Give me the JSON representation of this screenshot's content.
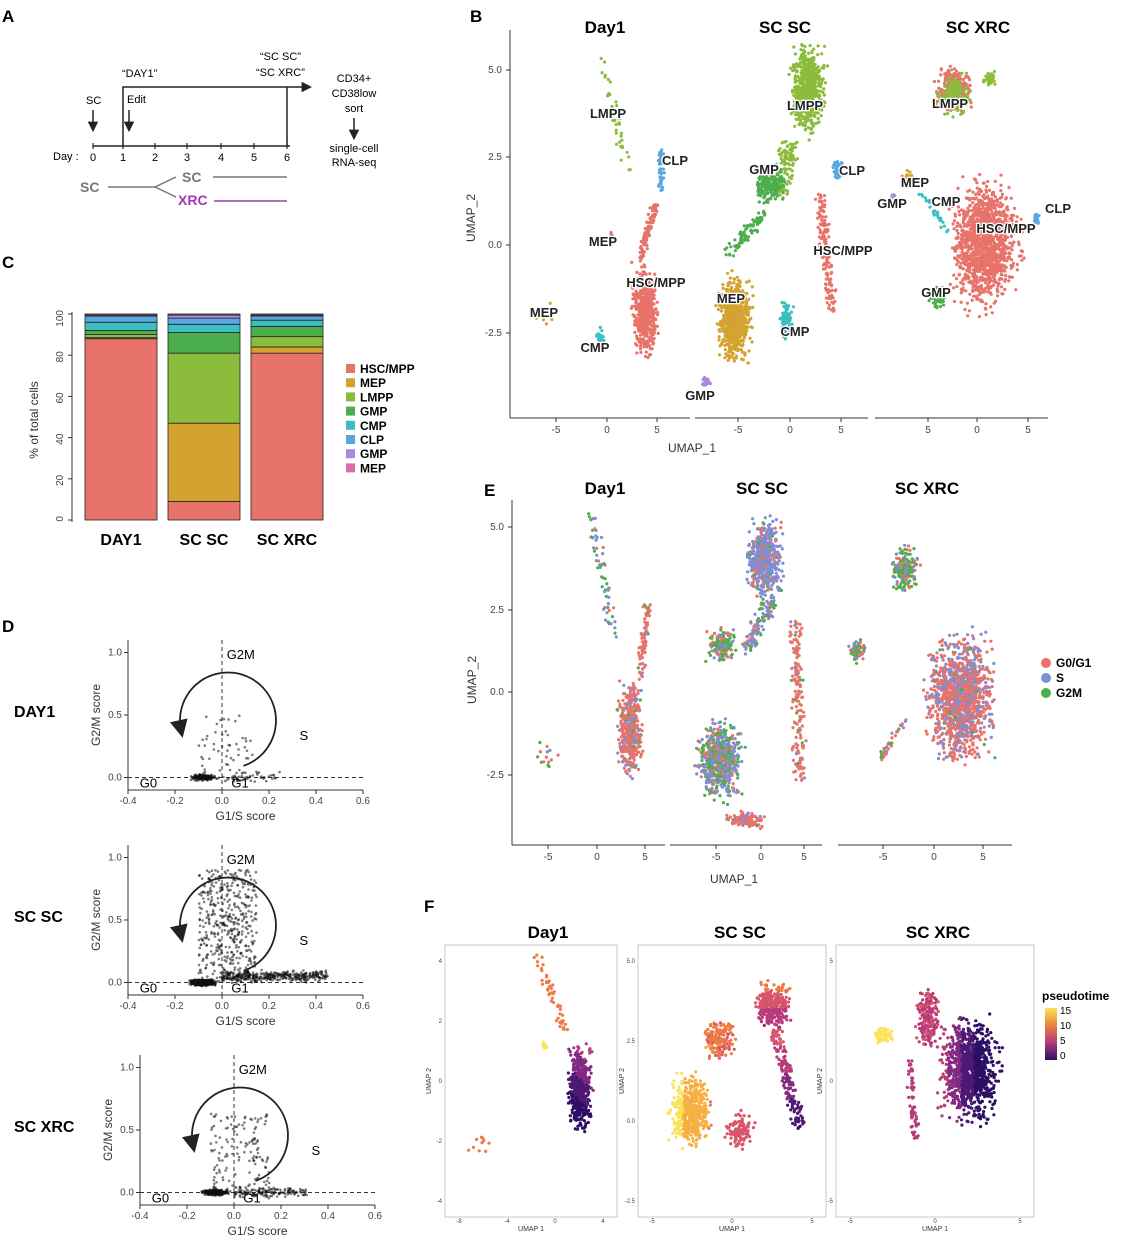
{
  "panels": {
    "A": {
      "label": "A",
      "sc_top": "SC",
      "edit": "Edit",
      "day1_quote": "“DAY1”",
      "scsc_quote": "“SC SC”",
      "scxrc_quote": "“SC XRC”",
      "sort_lines": [
        "CD34+",
        "CD38low",
        "sort"
      ],
      "seq_lines": [
        "single-cell",
        "RNA-seq"
      ],
      "day_label": "Day :",
      "days": [
        "0",
        "1",
        "2",
        "3",
        "4",
        "5",
        "6"
      ],
      "sc_root": "SC",
      "sc_branch": "SC",
      "xrc_branch": "XRC",
      "xrc_color": "#9b3db0"
    },
    "B": {
      "label": "B",
      "titles": [
        "Day1",
        "SC SC",
        "SC XRC"
      ],
      "xlabel": "UMAP_1",
      "ylabel": "UMAP_2",
      "yticks": [
        "5.0",
        "2.5",
        "0.0",
        "-2.5"
      ],
      "xticks": [
        [
          "-5",
          "0",
          "5"
        ],
        [
          "-5",
          "0",
          "5"
        ],
        [
          "5",
          "0",
          "5"
        ]
      ],
      "cluster_labels": [
        [
          "LMPP",
          "CLP",
          "MEP",
          "HSC/MPP",
          "MEP",
          "CMP"
        ],
        [
          "LMPP",
          "GMP",
          "CLP",
          "HSC/MPP",
          "MEP",
          "CMP",
          "GMP"
        ],
        [
          "LMPP",
          "MEP",
          "GMP",
          "CMP",
          "CLP",
          "HSC/MPP",
          "GMP"
        ]
      ]
    },
    "C": {
      "label": "C",
      "ylabel": "% of total cells",
      "yticks": [
        "0",
        "20",
        "40",
        "60",
        "80",
        "100"
      ]
    },
    "D": {
      "label": "D",
      "rows": [
        "DAY1",
        "SC SC",
        "SC XRC"
      ],
      "xlabel": "G1/S score",
      "ylabel": "G2/M score",
      "xticks": [
        "-0.4",
        "-0.2",
        "0.0",
        "0.2",
        "0.4",
        "0.6"
      ],
      "yticks": [
        "1.0",
        "0.5",
        "0.0"
      ],
      "phase_labels": [
        "G2M",
        "S",
        "G0",
        "G1"
      ]
    },
    "E": {
      "label": "E",
      "titles": [
        "Day1",
        "SC SC",
        "SC XRC"
      ],
      "xlabel": "UMAP_1",
      "ylabel": "UMAP_2",
      "yticks": [
        "5.0",
        "2.5",
        "0.0",
        "-2.5"
      ],
      "xticks": [
        [
          "-5",
          "0",
          "5"
        ],
        [
          "-5",
          "0",
          "5"
        ],
        [
          "-5",
          "0",
          "5"
        ]
      ],
      "legend": [
        {
          "name": "G0/G1",
          "color": "#e8736b"
        },
        {
          "name": "S",
          "color": "#7d8ed4"
        },
        {
          "name": "G2M",
          "color": "#4cae4c"
        }
      ]
    },
    "F": {
      "label": "F",
      "titles": [
        "Day1",
        "SC SC",
        "SC XRC"
      ],
      "xlabel": "UMAP 1",
      "ylabel": "UMAP 2",
      "legend_title": "pseudotime",
      "legend_ticks": [
        "15",
        "10",
        "5",
        "0"
      ],
      "yticks": [
        [
          "4",
          "2",
          "0",
          "-2",
          "-4"
        ],
        [
          "5.0",
          "2.5",
          "0.0",
          "-2.5"
        ],
        [
          "5",
          "0",
          "-5"
        ]
      ],
      "xticks": [
        [
          "-8",
          "-4",
          "0",
          "4"
        ],
        [
          "-5",
          "0",
          "5"
        ],
        [
          "-5",
          "0",
          "5"
        ]
      ]
    }
  },
  "chart_data": [
    {
      "type": "bar",
      "title": "",
      "stacked": true,
      "categories": [
        "DAY1",
        "SC SC",
        "SC XRC"
      ],
      "ylabel": "% of total cells",
      "ylim": [
        0,
        100
      ],
      "series": [
        {
          "name": "HSC/MPP",
          "color": "#e8736b",
          "values": [
            88,
            9,
            81
          ]
        },
        {
          "name": "MEP",
          "color": "#d4a22f",
          "values": [
            0.5,
            38,
            3
          ]
        },
        {
          "name": "LMPP",
          "color": "#8cbc3c",
          "values": [
            1.5,
            34,
            5
          ]
        },
        {
          "name": "GMP",
          "color": "#4cae4c",
          "values": [
            2,
            10,
            5
          ]
        },
        {
          "name": "CMP",
          "color": "#3bbfc3",
          "values": [
            4,
            4,
            3
          ]
        },
        {
          "name": "CLP",
          "color": "#5aa6e0",
          "values": [
            3,
            3,
            2
          ]
        },
        {
          "name": "GMP",
          "color": "#a98be0",
          "values": [
            0.5,
            1.5,
            0.5
          ]
        },
        {
          "name": "MEP",
          "color": "#e06aa8",
          "values": [
            0.5,
            0.5,
            0.5
          ]
        }
      ]
    }
  ]
}
